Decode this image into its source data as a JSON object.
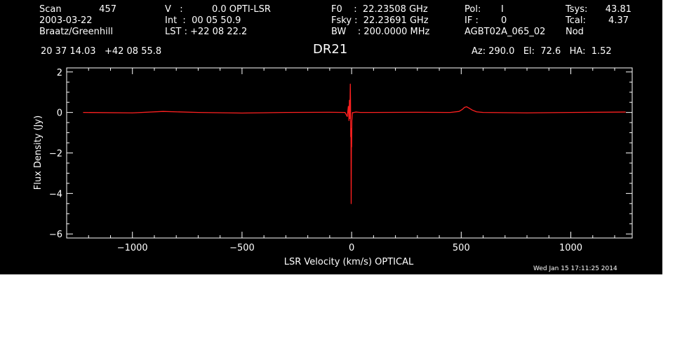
{
  "header": {
    "col1": {
      "scan_label": "Scan",
      "scan_value": "457",
      "date": "2003-03-22",
      "observer": "Braatz/Greenhill"
    },
    "col2": {
      "v_line": "V   :          0.0 OPTI-LSR",
      "int_line": "Int  :  00 05 50.9",
      "lst_line": "LST : +22 08 22.2"
    },
    "col3": {
      "f0_line": "F0    :  22.23508 GHz",
      "fsky_line": "Fsky :  22.23691 GHz",
      "bw_line": "BW    : 200.0000 MHz"
    },
    "col4": {
      "pol_label": "Pol:",
      "pol_value": "I",
      "if_label": "IF :",
      "if_value": "0",
      "project": "AGBT02A_065_02"
    },
    "col5": {
      "tsys_label": "Tsys:",
      "tsys_value": "43.81",
      "tcal_label": "Tcal:",
      "tcal_value": "4.37",
      "mode": "Nod"
    },
    "coords": "20 37 14.03   +42 08 55.8",
    "source": "DR21",
    "pointing": "Az: 290.0   El:  72.6   HA:  1.52",
    "timestamp": "Wed Jan 15 17:11:25 2014"
  },
  "colors": {
    "background": "#000000",
    "axes": "#ffffff",
    "trace": "#ff2020"
  },
  "chart_data": {
    "type": "line",
    "title": "DR21",
    "xlabel": "LSR Velocity (km/s) OPTICAL",
    "ylabel": "Flux Density (Jy)",
    "xlim": [
      -1300,
      1280
    ],
    "ylim": [
      -6.2,
      2.2
    ],
    "xticks": [
      -1000,
      -500,
      0,
      500,
      1000
    ],
    "xtick_labels": [
      "−1000",
      "−500",
      "0",
      "500",
      "1000"
    ],
    "yticks": [
      -6,
      -4,
      -2,
      0,
      2
    ],
    "ytick_labels": [
      "−6",
      "−4",
      "−2",
      "0",
      "2"
    ],
    "grid": false,
    "series": [
      {
        "x": [
          -1225,
          -1000,
          -860,
          -700,
          -500,
          -300,
          -100,
          -30,
          -20,
          -15,
          -12,
          -10,
          -8,
          -6,
          -5,
          -4,
          -3,
          -2,
          -1.5,
          -1,
          0,
          1,
          2,
          3,
          4,
          6,
          10,
          20,
          40,
          100,
          300,
          450,
          490,
          505,
          515,
          525,
          535,
          550,
          570,
          600,
          800,
          1000,
          1250
        ],
        "values": [
          0.0,
          -0.02,
          0.05,
          0.0,
          -0.03,
          0.0,
          0.01,
          0.0,
          -0.2,
          0.3,
          -0.4,
          0.6,
          -0.3,
          1.4,
          0.5,
          -1.2,
          -0.8,
          -4.5,
          -3.0,
          -1.6,
          -1.7,
          -0.4,
          -0.3,
          -0.1,
          0.0,
          -0.02,
          0.0,
          0.02,
          0.0,
          0.0,
          0.01,
          0.0,
          0.05,
          0.15,
          0.25,
          0.28,
          0.22,
          0.12,
          0.03,
          0.0,
          -0.02,
          0.0,
          0.02
        ]
      }
    ]
  }
}
